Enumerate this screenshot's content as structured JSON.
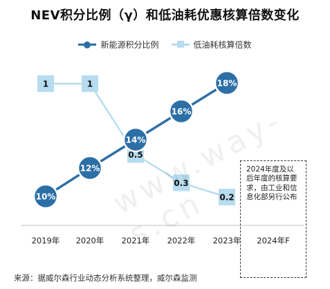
{
  "title": "NEV积分比例（γ）和低油耗优惠核算倍数变化",
  "legend": {
    "series1": "新能源积分比例",
    "series2": "低油耗核算倍数"
  },
  "note": "2024年度及以后年度的核算要求，由工业和信息化部另行公布",
  "source": "来源：据威尔森行业动态分析系统整理，威尔森监测",
  "watermark": "www.way-s.cn",
  "colors": {
    "series1": "#2c6fa6",
    "series2": "#b7dcef"
  },
  "chart_data": {
    "type": "line",
    "categories": [
      "2019年",
      "2020年",
      "2021年",
      "2022年",
      "2023年",
      "2024年F"
    ],
    "series": [
      {
        "name": "新能源积分比例",
        "values": [
          10,
          12,
          14,
          16,
          18,
          null
        ],
        "labels": [
          "10%",
          "12%",
          "14%",
          "16%",
          "18%",
          ""
        ]
      },
      {
        "name": "低油耗核算倍数",
        "values": [
          1,
          1,
          0.5,
          0.3,
          0.2,
          null
        ],
        "labels": [
          "1",
          "1",
          "0.5",
          "0.3",
          "0.2",
          ""
        ]
      }
    ],
    "grid": false,
    "legend_position": "top"
  }
}
